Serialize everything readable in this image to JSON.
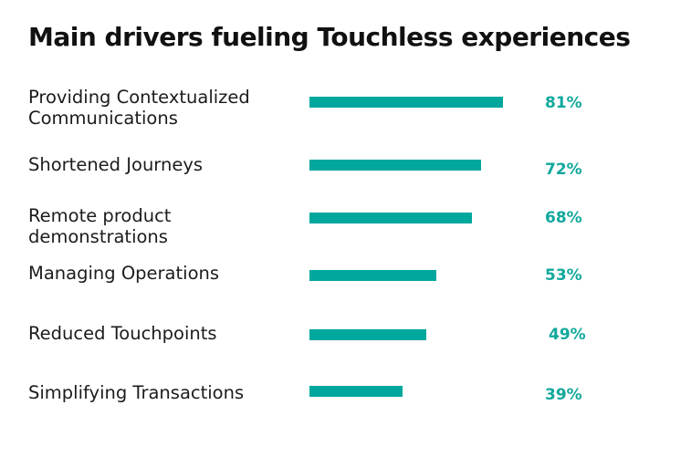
{
  "chart_data": {
    "type": "bar",
    "orientation": "horizontal",
    "title": "Main drivers fueling Touchless experiences",
    "categories": [
      "Providing Contextualized Communications",
      "Shortened Journeys",
      "Remote product demonstrations",
      "Managing Operations",
      "Reduced Touchpoints",
      "Simplifying Transactions"
    ],
    "label_lines": [
      [
        "Providing Contextualized",
        "Communications"
      ],
      [
        "Shortened Journeys"
      ],
      [
        "Remote product",
        "demonstrations"
      ],
      [
        "Managing Operations"
      ],
      [
        "Reduced Touchpoints"
      ],
      [
        "Simplifying Transactions"
      ]
    ],
    "values": [
      81,
      72,
      68,
      53,
      49,
      39
    ],
    "value_labels": [
      "81%",
      "72%",
      "68%",
      "53%",
      "49%",
      "39%"
    ],
    "xlim": [
      0,
      100
    ],
    "grid": false,
    "legend": "none",
    "bar_color": "#00a79d",
    "value_color": "#11a89c"
  }
}
